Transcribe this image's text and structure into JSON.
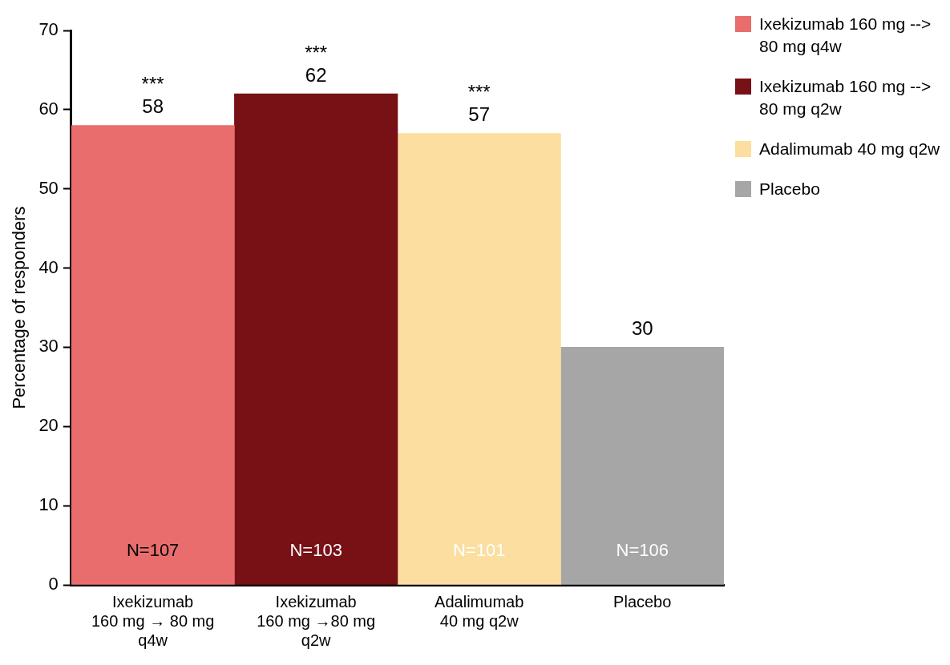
{
  "chart_data": {
    "type": "bar",
    "ylabel": "Percentage of responders",
    "categories": [
      "Ixekizumab\n160 mg → 80 mg\nq4w",
      "Ixekizumab\n160 mg →80 mg\nq2w",
      "Adalimumab\n40 mg q2w",
      "Placebo"
    ],
    "series": [
      {
        "name": "Ixekizumab 160 mg --> 80 mg q4w",
        "color": "#e96d6d",
        "values": [
          58,
          null,
          null,
          null
        ]
      },
      {
        "name": "Ixekizumab 160 mg --> 80 mg q2w",
        "color": "#771116",
        "values": [
          null,
          62,
          null,
          null
        ]
      },
      {
        "name": "Adalimumab 40 mg q2w",
        "color": "#fbdea0",
        "values": [
          null,
          null,
          57,
          null
        ]
      },
      {
        "name": "Placebo",
        "color": "#a6a6a6",
        "values": [
          null,
          null,
          null,
          30
        ]
      }
    ],
    "ylim": [
      0,
      70
    ],
    "yticks": [
      0,
      10,
      20,
      30,
      40,
      50,
      60,
      70
    ],
    "grid": false,
    "legend": "top right",
    "data_labels": true,
    "annotations": [
      "N=107",
      "N=103",
      "N=101",
      "N=106",
      "***",
      "***",
      "***"
    ]
  }
}
